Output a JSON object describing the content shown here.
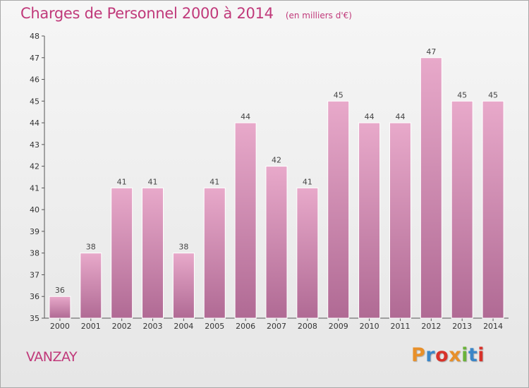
{
  "chart_data": {
    "type": "bar",
    "title": "Charges de Personnel 2000 à 2014",
    "subtitle": "(en milliers d'€)",
    "categories": [
      "2000",
      "2001",
      "2002",
      "2003",
      "2004",
      "2005",
      "2006",
      "2007",
      "2008",
      "2009",
      "2010",
      "2011",
      "2012",
      "2013",
      "2014"
    ],
    "values": [
      36,
      38,
      41,
      41,
      38,
      41,
      44,
      42,
      41,
      45,
      44,
      44,
      47,
      45,
      45
    ],
    "yticks": [
      "35",
      "36",
      "37",
      "38",
      "39",
      "40",
      "41",
      "42",
      "43",
      "44",
      "45",
      "46",
      "47",
      "48"
    ],
    "ylim": [
      35,
      48
    ],
    "grid": false,
    "bar_color": "#d98cb5",
    "xlabel": "",
    "ylabel": ""
  },
  "footer": {
    "commune": "VANZAY",
    "brand": "Proxiti",
    "brand_colors": [
      "#e8902a",
      "#3a86c8",
      "#d8322a",
      "#e8902a",
      "#6ab33a",
      "#3a86c8",
      "#d8322a"
    ]
  }
}
